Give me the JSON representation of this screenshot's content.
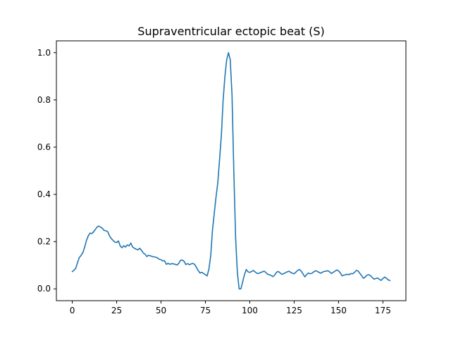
{
  "chart_data": {
    "type": "line",
    "title": "Supraventricular ectopic beat (S)",
    "xlabel": "",
    "ylabel": "",
    "xlim": [
      -8.95,
      187.95
    ],
    "ylim": [
      -0.05,
      1.05
    ],
    "grid": false,
    "x_ticks": [
      0,
      25,
      50,
      75,
      100,
      125,
      150,
      175
    ],
    "y_ticks": [
      0.0,
      0.2,
      0.4,
      0.6,
      0.8,
      1.0
    ],
    "y_tick_labels": [
      "0.0",
      "0.2",
      "0.4",
      "0.6",
      "0.8",
      "1.0"
    ],
    "series": [
      {
        "color": "#1f77b4",
        "x_start": 0,
        "x_step": 1,
        "values": [
          0.073,
          0.079,
          0.088,
          0.112,
          0.133,
          0.142,
          0.154,
          0.177,
          0.205,
          0.224,
          0.236,
          0.234,
          0.241,
          0.252,
          0.262,
          0.266,
          0.261,
          0.256,
          0.247,
          0.246,
          0.242,
          0.224,
          0.213,
          0.205,
          0.198,
          0.196,
          0.203,
          0.182,
          0.174,
          0.183,
          0.177,
          0.186,
          0.182,
          0.194,
          0.177,
          0.172,
          0.168,
          0.165,
          0.172,
          0.163,
          0.152,
          0.147,
          0.137,
          0.142,
          0.14,
          0.137,
          0.136,
          0.134,
          0.131,
          0.125,
          0.124,
          0.118,
          0.119,
          0.104,
          0.108,
          0.104,
          0.107,
          0.106,
          0.104,
          0.101,
          0.108,
          0.121,
          0.122,
          0.116,
          0.103,
          0.107,
          0.102,
          0.106,
          0.108,
          0.103,
          0.09,
          0.077,
          0.067,
          0.07,
          0.065,
          0.06,
          0.055,
          0.085,
          0.14,
          0.25,
          0.32,
          0.39,
          0.45,
          0.55,
          0.65,
          0.8,
          0.9,
          0.97,
          1.0,
          0.97,
          0.82,
          0.5,
          0.22,
          0.07,
          0.0,
          0.0,
          0.03,
          0.06,
          0.082,
          0.072,
          0.07,
          0.073,
          0.078,
          0.072,
          0.066,
          0.065,
          0.069,
          0.072,
          0.075,
          0.07,
          0.062,
          0.06,
          0.057,
          0.052,
          0.058,
          0.07,
          0.074,
          0.068,
          0.062,
          0.064,
          0.068,
          0.072,
          0.075,
          0.07,
          0.066,
          0.064,
          0.071,
          0.078,
          0.082,
          0.075,
          0.063,
          0.051,
          0.06,
          0.067,
          0.064,
          0.066,
          0.072,
          0.077,
          0.074,
          0.07,
          0.066,
          0.071,
          0.074,
          0.075,
          0.077,
          0.072,
          0.065,
          0.07,
          0.075,
          0.08,
          0.076,
          0.068,
          0.055,
          0.058,
          0.06,
          0.062,
          0.06,
          0.065,
          0.064,
          0.07,
          0.078,
          0.076,
          0.066,
          0.056,
          0.045,
          0.05,
          0.058,
          0.06,
          0.056,
          0.048,
          0.041,
          0.044,
          0.046,
          0.04,
          0.036,
          0.044,
          0.05,
          0.045,
          0.038,
          0.035
        ]
      }
    ]
  }
}
